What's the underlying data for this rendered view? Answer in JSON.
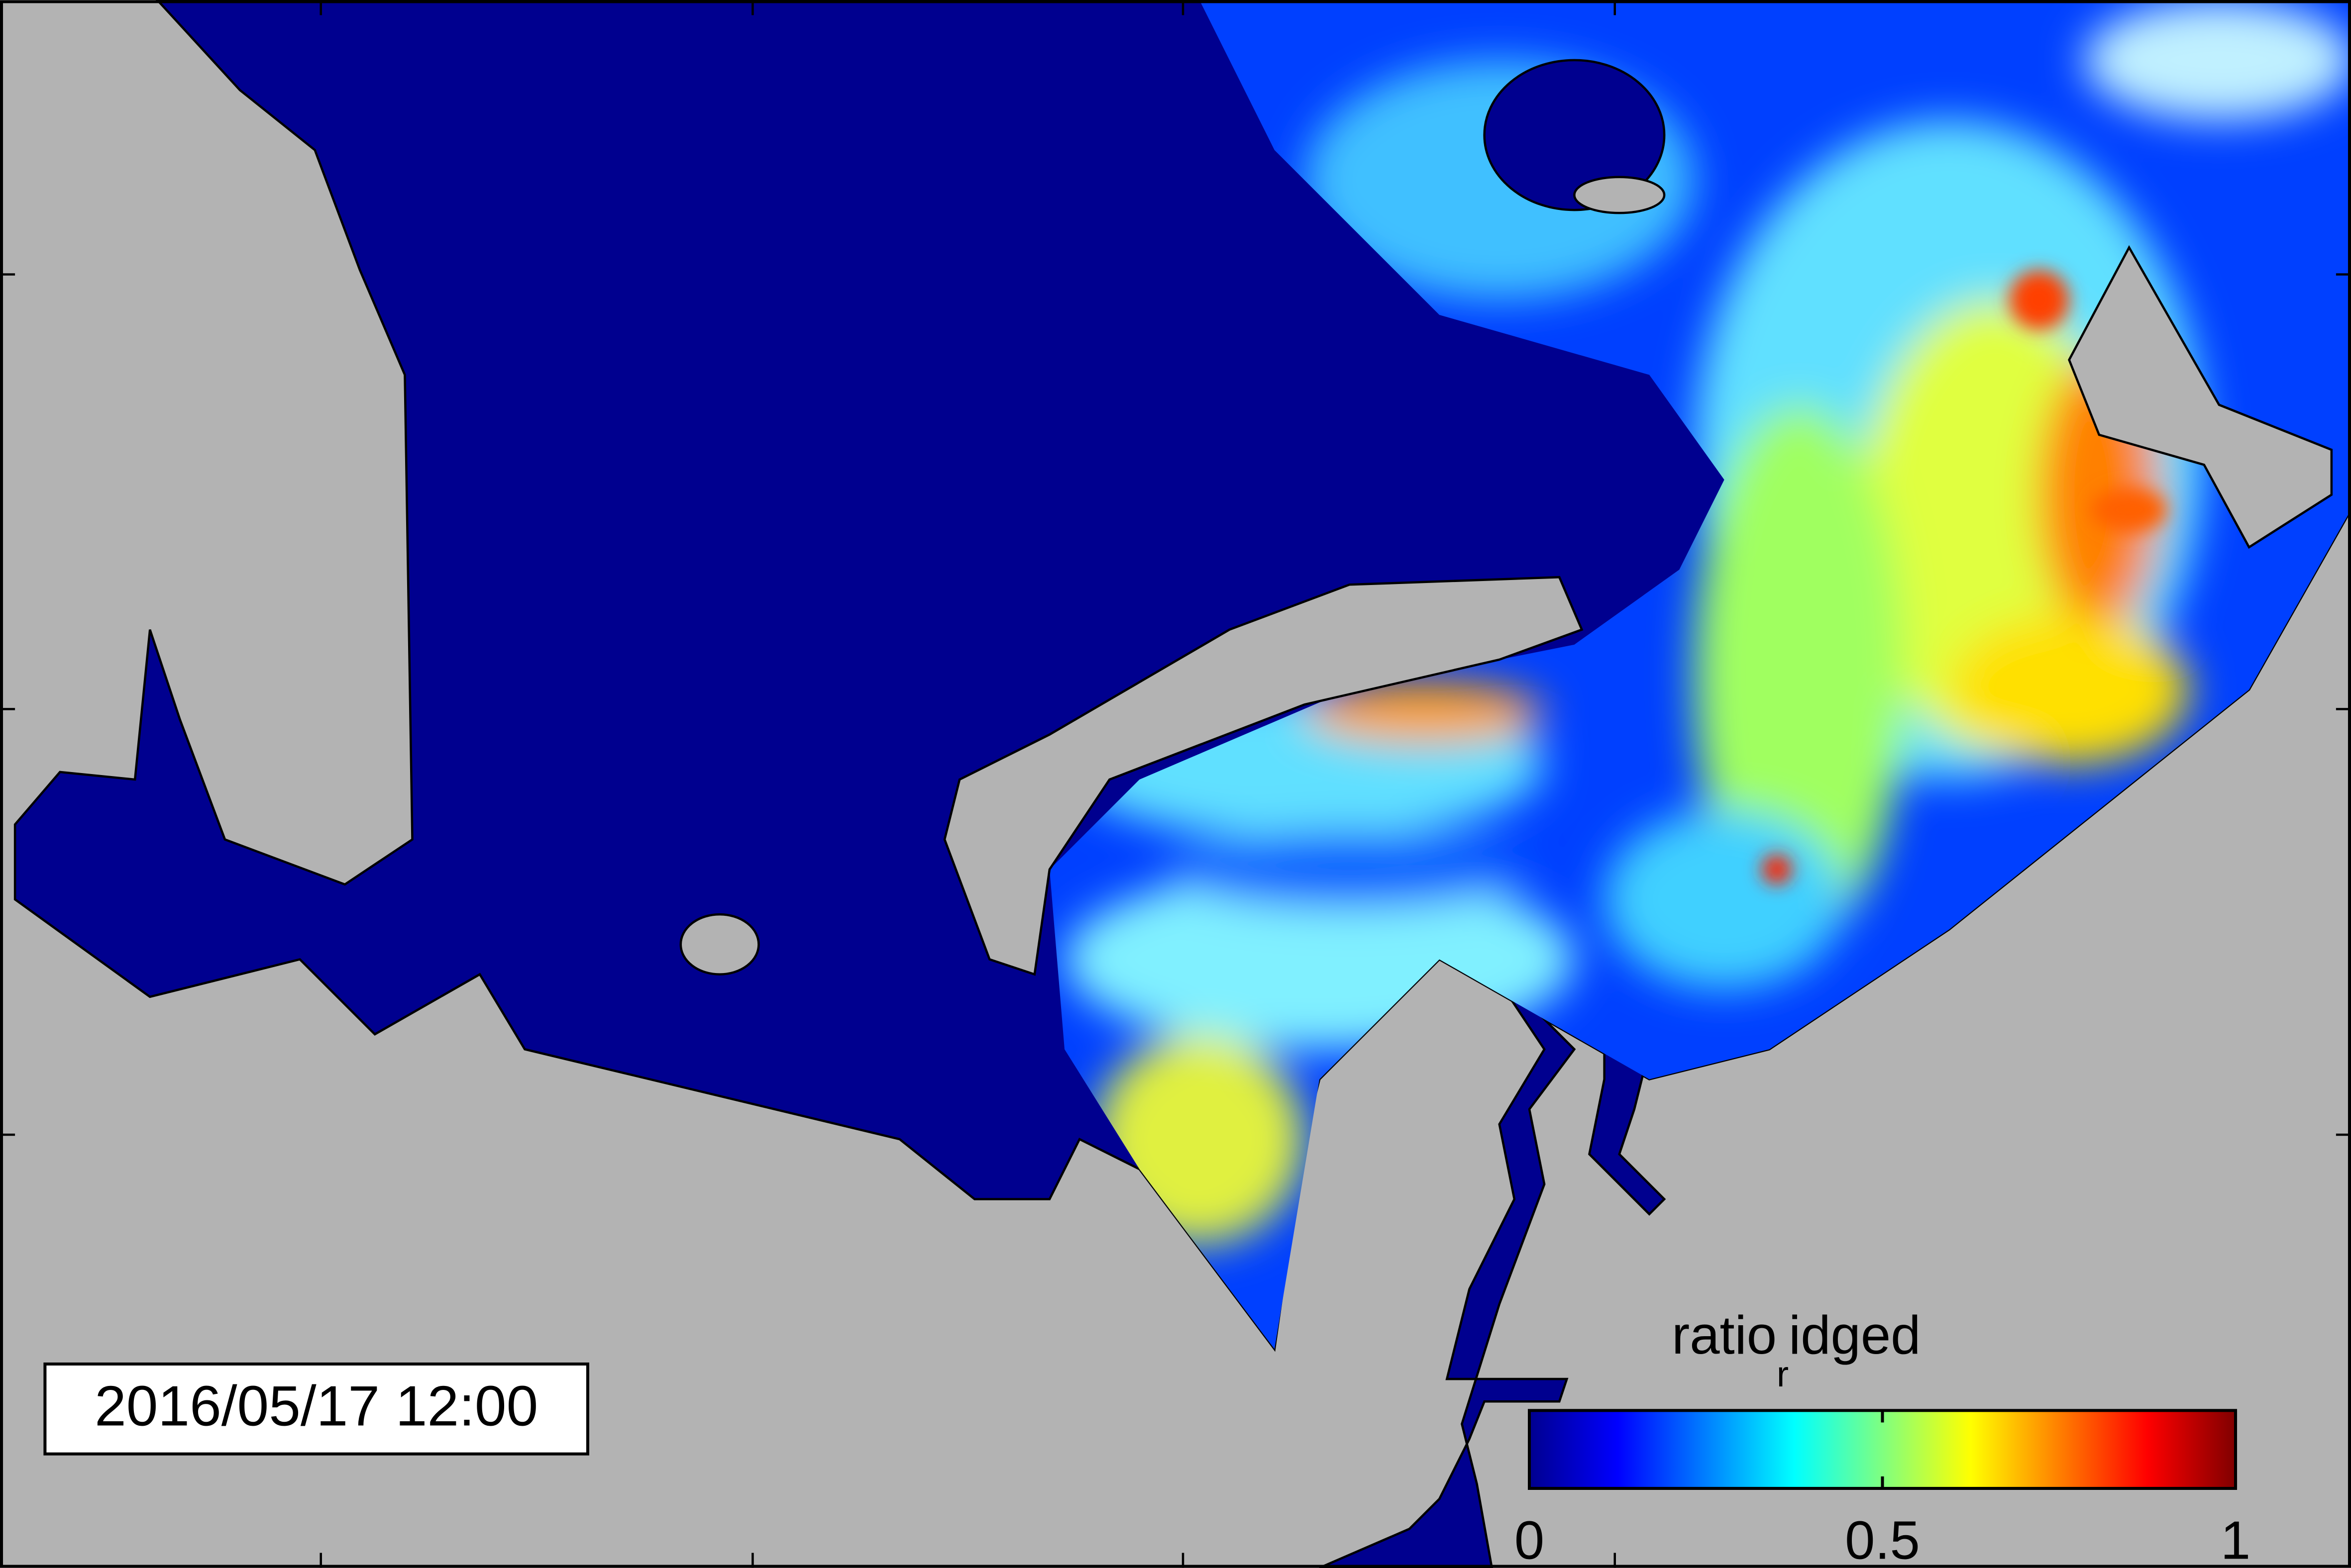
{
  "timestamp": "2016/05/17 12:00",
  "colorbar": {
    "label": "ratio",
    "label_subscript": "r",
    "label_rest": "idged",
    "clim": [
      0,
      1
    ],
    "ticks": [
      0,
      0.5,
      1
    ]
  }
}
